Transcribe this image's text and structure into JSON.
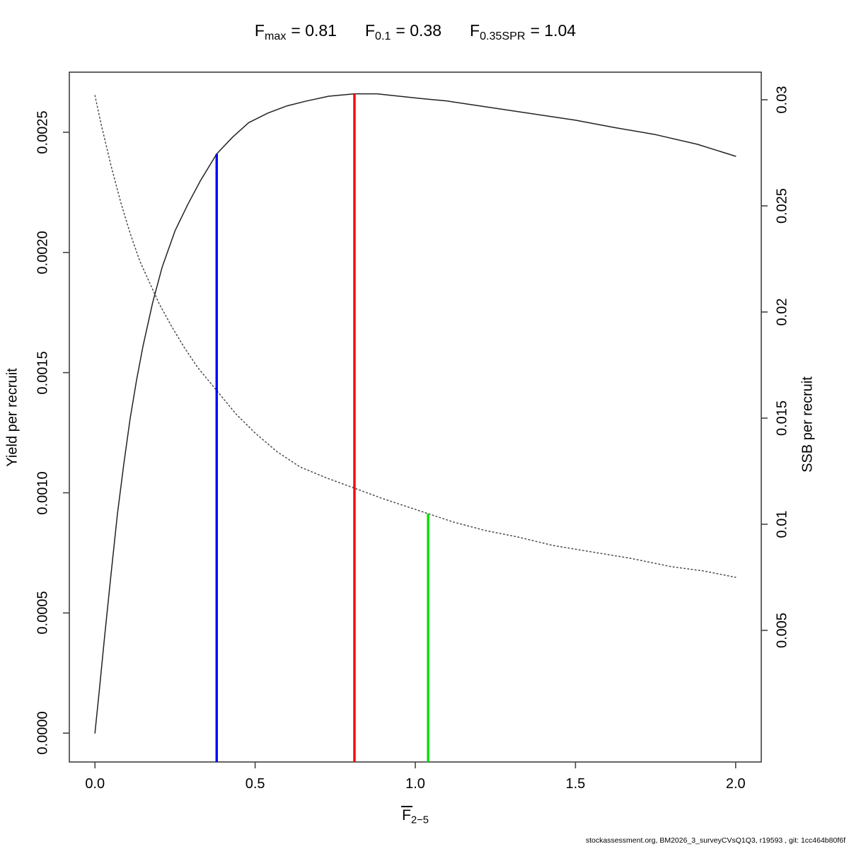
{
  "title": {
    "items": [
      {
        "base": "F",
        "sub": "max",
        "value": "= 0.81"
      },
      {
        "base": "F",
        "sub": "0.1",
        "value": "= 0.38"
      },
      {
        "base": "F",
        "sub": "0.35SPR",
        "value": "= 1.04"
      }
    ]
  },
  "axes": {
    "x": {
      "base": "F",
      "bar": true,
      "sub": "2−5"
    },
    "y_left_label": "Yield per recruit",
    "y_right_label": "SSB per recruit"
  },
  "footer": "stockassessment.org, BM2026_3_surveyCVsQ1Q3, r19593 , git: 1cc464b80f6f",
  "chart_data": {
    "type": "line",
    "title": "Fmax = 0.81  F0.1 = 0.38  F0.35SPR = 1.04",
    "xlabel": "Fbar(2-5)",
    "ylabel_left": "Yield per recruit",
    "ylabel_right": "SSB per recruit",
    "grid": false,
    "legend": "none",
    "xlim": [
      -0.08,
      2.08
    ],
    "ylim_left": [
      -0.00012,
      0.00275
    ],
    "ylim_right": [
      -0.0012,
      0.0313
    ],
    "x_ticks": [
      "0.0",
      "0.5",
      "1.0",
      "1.5",
      "2.0"
    ],
    "x_tick_values": [
      0,
      0.5,
      1.0,
      1.5,
      2.0
    ],
    "y_left_ticks": [
      "0.0000",
      "0.0005",
      "0.0010",
      "0.0015",
      "0.0020",
      "0.0025"
    ],
    "y_left_tick_values": [
      0.0,
      0.0005,
      0.001,
      0.0015,
      0.002,
      0.0025
    ],
    "y_right_ticks": [
      "0.005",
      "0.01",
      "0.015",
      "0.02",
      "0.025",
      "0.03"
    ],
    "y_right_tick_values": [
      0.005,
      0.01,
      0.015,
      0.02,
      0.025,
      0.03
    ],
    "series": [
      {
        "name": "Yield per recruit",
        "axis": "left",
        "style": "solid",
        "color": "#222222",
        "x": [
          0,
          0.013,
          0.03,
          0.05,
          0.07,
          0.09,
          0.11,
          0.13,
          0.15,
          0.18,
          0.21,
          0.25,
          0.29,
          0.33,
          0.38,
          0.43,
          0.48,
          0.54,
          0.6,
          0.66,
          0.73,
          0.81,
          0.88,
          0.95,
          1.02,
          1.1,
          1.2,
          1.3,
          1.4,
          1.5,
          1.62,
          1.75,
          1.88,
          2.0
        ],
        "y": [
          0,
          0.00017,
          0.0004,
          0.00066,
          0.00091,
          0.00112,
          0.00131,
          0.00147,
          0.00161,
          0.00179,
          0.00194,
          0.00209,
          0.0022,
          0.0023,
          0.00241,
          0.00248,
          0.00254,
          0.00258,
          0.00261,
          0.00263,
          0.00265,
          0.00266,
          0.00266,
          0.00265,
          0.00264,
          0.00263,
          0.00261,
          0.00259,
          0.00257,
          0.00255,
          0.00252,
          0.00249,
          0.00245,
          0.0024
        ]
      },
      {
        "name": "SSB per recruit",
        "axis": "right",
        "style": "dotted",
        "color": "#4a4a4a",
        "x": [
          0,
          0.02,
          0.05,
          0.08,
          0.11,
          0.14,
          0.17,
          0.2,
          0.24,
          0.28,
          0.32,
          0.38,
          0.44,
          0.5,
          0.57,
          0.64,
          0.72,
          0.81,
          0.9,
          1.0,
          1.04,
          1.12,
          1.22,
          1.32,
          1.43,
          1.55,
          1.67,
          1.8,
          1.9,
          2.0
        ],
        "y": [
          0.0302,
          0.0288,
          0.0269,
          0.0252,
          0.0237,
          0.0224,
          0.0214,
          0.0204,
          0.0193,
          0.0183,
          0.0174,
          0.0163,
          0.0152,
          0.0143,
          0.0134,
          0.0127,
          0.0122,
          0.0117,
          0.0112,
          0.0107,
          0.0105,
          0.0101,
          0.0097,
          0.0094,
          0.009,
          0.0087,
          0.0084,
          0.008,
          0.0078,
          0.0075
        ]
      }
    ],
    "reference_lines": [
      {
        "name": "F0.1",
        "x": 0.38,
        "color": "#0000ff",
        "top_axis": "left",
        "top_value": 0.00241
      },
      {
        "name": "Fmax",
        "x": 0.81,
        "color": "#ff0000",
        "top_axis": "left",
        "top_value": 0.00266
      },
      {
        "name": "F0.35SPR",
        "x": 1.04,
        "color": "#00e000",
        "top_axis": "right",
        "top_value": 0.0105
      }
    ]
  }
}
